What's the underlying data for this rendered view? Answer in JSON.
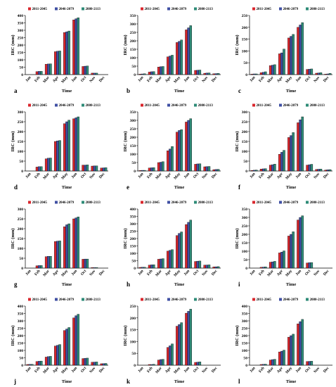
{
  "chart_data": [
    {
      "panel": "a",
      "type": "bar",
      "categories": [
        "Jan",
        "Feb",
        "Mar",
        "Apr",
        "May",
        "Jun",
        "Oct",
        "Nov",
        "Dec"
      ],
      "ylim": [
        0,
        400
      ],
      "yticks": [
        0,
        50,
        100,
        150,
        200,
        250,
        300,
        350,
        400
      ],
      "xlabel": "Time",
      "ylabel": "IRC (mm)",
      "legend": "top",
      "series": [
        {
          "name": "2011-2045",
          "values": [
            0,
            20,
            70,
            155,
            285,
            370,
            55,
            10,
            0
          ]
        },
        {
          "name": "2046-2079",
          "values": [
            0,
            22,
            72,
            158,
            290,
            378,
            57,
            10,
            0
          ]
        },
        {
          "name": "2080-2113",
          "values": [
            0,
            22,
            73,
            160,
            295,
            385,
            58,
            10,
            0
          ]
        }
      ]
    },
    {
      "panel": "b",
      "type": "bar",
      "categories": [
        "Jan",
        "Feb",
        "Mar",
        "Apr",
        "May",
        "Jun",
        "Oct",
        "Nov",
        "Dec"
      ],
      "ylim": [
        0,
        350
      ],
      "yticks": [
        0,
        50,
        100,
        150,
        200,
        250,
        300,
        350
      ],
      "xlabel": "Time",
      "ylabel": "IRC (mm)",
      "legend": "top",
      "series": [
        {
          "name": "2011-2045",
          "values": [
            3,
            15,
            45,
            105,
            190,
            265,
            25,
            8,
            5
          ]
        },
        {
          "name": "2046-2079",
          "values": [
            4,
            17,
            47,
            110,
            197,
            277,
            26,
            9,
            6
          ]
        },
        {
          "name": "2080-2113",
          "values": [
            5,
            18,
            48,
            115,
            205,
            290,
            27,
            10,
            7
          ]
        }
      ]
    },
    {
      "panel": "c",
      "type": "bar",
      "categories": [
        "Jan",
        "Feb",
        "Mar",
        "Apr",
        "May",
        "Jun",
        "Oct",
        "Nov",
        "Dec"
      ],
      "ylim": [
        0,
        250
      ],
      "yticks": [
        0,
        50,
        100,
        150,
        200,
        250
      ],
      "xlabel": "Time",
      "ylabel": "IRC (mm)",
      "legend": "top",
      "series": [
        {
          "name": "2011-2045",
          "values": [
            2,
            8,
            38,
            88,
            155,
            200,
            22,
            6,
            2
          ]
        },
        {
          "name": "2046-2079",
          "values": [
            3,
            10,
            40,
            92,
            162,
            210,
            23,
            7,
            3
          ]
        },
        {
          "name": "2080-2113",
          "values": [
            3,
            12,
            42,
            108,
            170,
            220,
            24,
            8,
            5
          ]
        }
      ]
    },
    {
      "panel": "d",
      "type": "bar",
      "categories": [
        "Jan",
        "Feb",
        "Mar",
        "Apr",
        "May",
        "Jun",
        "Oct",
        "Nov",
        "Dec"
      ],
      "ylim": [
        0,
        300
      ],
      "yticks": [
        0,
        50,
        100,
        150,
        200,
        250,
        300
      ],
      "xlabel": "Time",
      "ylabel": "IRC (mm)",
      "legend": "top",
      "series": [
        {
          "name": "2011-2045",
          "values": [
            0,
            20,
            62,
            150,
            240,
            265,
            30,
            25,
            15
          ]
        },
        {
          "name": "2046-2079",
          "values": [
            0,
            22,
            65,
            153,
            250,
            270,
            30,
            26,
            16
          ]
        },
        {
          "name": "2080-2113",
          "values": [
            0,
            22,
            66,
            155,
            258,
            275,
            31,
            26,
            17
          ]
        }
      ]
    },
    {
      "panel": "e",
      "type": "bar",
      "categories": [
        "Jan",
        "Feb",
        "Mar",
        "Apr",
        "May",
        "Jun",
        "Oct",
        "Nov",
        "Dec"
      ],
      "ylim": [
        0,
        350
      ],
      "yticks": [
        0,
        50,
        100,
        150,
        200,
        250,
        300,
        350
      ],
      "xlabel": "Time",
      "ylabel": "IRC (mm)",
      "legend": "top",
      "series": [
        {
          "name": "2011-2045",
          "values": [
            3,
            18,
            50,
            120,
            230,
            290,
            40,
            25,
            8
          ]
        },
        {
          "name": "2046-2079",
          "values": [
            4,
            19,
            52,
            130,
            240,
            300,
            42,
            26,
            9
          ]
        },
        {
          "name": "2080-2113",
          "values": [
            4,
            20,
            55,
            145,
            245,
            310,
            43,
            27,
            10
          ]
        }
      ]
    },
    {
      "panel": "f",
      "type": "bar",
      "categories": [
        "Jan",
        "Feb",
        "Mar",
        "Apr",
        "May",
        "Jun",
        "Oct",
        "Nov",
        "Dec"
      ],
      "ylim": [
        0,
        300
      ],
      "yticks": [
        0,
        50,
        100,
        150,
        200,
        250,
        300
      ],
      "xlabel": "Time",
      "ylabel": "IRC (mm)",
      "legend": "top",
      "series": [
        {
          "name": "2011-2045",
          "values": [
            3,
            10,
            30,
            85,
            170,
            245,
            30,
            8,
            5
          ]
        },
        {
          "name": "2046-2079",
          "values": [
            4,
            11,
            32,
            95,
            180,
            260,
            32,
            9,
            6
          ]
        },
        {
          "name": "2080-2113",
          "values": [
            5,
            12,
            35,
            105,
            195,
            275,
            34,
            10,
            7
          ]
        }
      ]
    },
    {
      "panel": "g",
      "type": "bar",
      "categories": [
        "Jan",
        "Feb",
        "Mar",
        "Apr",
        "May",
        "Jun",
        "Oct",
        "Nov",
        "Dec"
      ],
      "ylim": [
        0,
        300
      ],
      "yticks": [
        0,
        50,
        100,
        150,
        200,
        250,
        300
      ],
      "xlabel": "Time",
      "ylabel": "IRC (mm)",
      "legend": "top",
      "series": [
        {
          "name": "2011-2045",
          "values": [
            0,
            12,
            58,
            135,
            210,
            250,
            45,
            3,
            0
          ]
        },
        {
          "name": "2046-2079",
          "values": [
            0,
            13,
            60,
            137,
            220,
            255,
            46,
            3,
            0
          ]
        },
        {
          "name": "2080-2113",
          "values": [
            0,
            13,
            60,
            138,
            225,
            260,
            46,
            3,
            0
          ]
        }
      ]
    },
    {
      "panel": "h",
      "type": "bar",
      "categories": [
        "Jan",
        "Feb",
        "Mar",
        "Apr",
        "May",
        "Jun",
        "Oct",
        "Nov",
        "Dec"
      ],
      "ylim": [
        0,
        400
      ],
      "yticks": [
        0,
        50,
        100,
        150,
        200,
        250,
        300,
        350,
        400
      ],
      "xlabel": "Time",
      "ylabel": "IRC (mm)",
      "legend": "top",
      "series": [
        {
          "name": "2011-2045",
          "values": [
            5,
            20,
            60,
            115,
            220,
            295,
            45,
            20,
            8
          ]
        },
        {
          "name": "2046-2079",
          "values": [
            6,
            22,
            62,
            120,
            235,
            310,
            47,
            21,
            9
          ]
        },
        {
          "name": "2080-2113",
          "values": [
            6,
            23,
            64,
            125,
            245,
            325,
            48,
            22,
            10
          ]
        }
      ]
    },
    {
      "panel": "i",
      "type": "bar",
      "categories": [
        "Jan",
        "Feb",
        "Mar",
        "Apr",
        "May",
        "Jun",
        "Oct",
        "Nov",
        "Dec"
      ],
      "ylim": [
        0,
        350
      ],
      "yticks": [
        0,
        50,
        100,
        150,
        200,
        250,
        300,
        350
      ],
      "xlabel": "Time",
      "ylabel": "IRC (mm)",
      "legend": "top",
      "series": [
        {
          "name": "2011-2045",
          "values": [
            0,
            5,
            35,
            90,
            190,
            285,
            30,
            0,
            0
          ]
        },
        {
          "name": "2046-2079",
          "values": [
            0,
            6,
            37,
            95,
            200,
            300,
            32,
            0,
            0
          ]
        },
        {
          "name": "2080-2113",
          "values": [
            0,
            7,
            40,
            102,
            215,
            310,
            33,
            0,
            0
          ]
        }
      ]
    },
    {
      "panel": "j",
      "type": "bar",
      "categories": [
        "Jan",
        "Feb",
        "Mar",
        "Apr",
        "May",
        "Jun",
        "Oct",
        "Nov",
        "Dec"
      ],
      "ylim": [
        0,
        400
      ],
      "yticks": [
        0,
        50,
        100,
        150,
        200,
        250,
        300,
        350,
        400
      ],
      "xlabel": "Time",
      "ylabel": "IRC (mm)",
      "legend": "top",
      "series": [
        {
          "name": "2011-2045",
          "values": [
            5,
            25,
            55,
            130,
            235,
            320,
            45,
            20,
            10
          ]
        },
        {
          "name": "2046-2079",
          "values": [
            6,
            27,
            58,
            135,
            245,
            335,
            47,
            21,
            11
          ]
        },
        {
          "name": "2080-2113",
          "values": [
            6,
            28,
            60,
            140,
            255,
            345,
            48,
            22,
            12
          ]
        }
      ]
    },
    {
      "panel": "k",
      "type": "bar",
      "categories": [
        "Jan",
        "Feb",
        "Mar",
        "Apr",
        "May",
        "Jun",
        "Oct",
        "Nov",
        "Dec"
      ],
      "ylim": [
        0,
        250
      ],
      "yticks": [
        0,
        50,
        100,
        150,
        200,
        250
      ],
      "xlabel": "Time",
      "ylabel": "IRC (mm)",
      "legend": "top",
      "series": [
        {
          "name": "2011-2045",
          "values": [
            0,
            3,
            22,
            75,
            165,
            220,
            12,
            0,
            0
          ]
        },
        {
          "name": "2046-2079",
          "values": [
            0,
            3,
            24,
            82,
            172,
            228,
            13,
            0,
            0
          ]
        },
        {
          "name": "2080-2113",
          "values": [
            0,
            4,
            25,
            90,
            180,
            237,
            14,
            0,
            0
          ]
        }
      ]
    },
    {
      "panel": "l",
      "type": "bar",
      "categories": [
        "Jan",
        "Feb",
        "Mar",
        "Apr",
        "May",
        "Jun",
        "Oct",
        "Nov",
        "Dec"
      ],
      "ylim": [
        0,
        400
      ],
      "yticks": [
        0,
        50,
        100,
        150,
        200,
        250,
        300,
        350,
        400
      ],
      "xlabel": "Time",
      "ylabel": "IRC (mm)",
      "legend": "top",
      "series": [
        {
          "name": "2011-2045",
          "values": [
            0,
            5,
            35,
            90,
            190,
            280,
            25,
            0,
            0
          ]
        },
        {
          "name": "2046-2079",
          "values": [
            0,
            6,
            38,
            95,
            200,
            295,
            26,
            0,
            0
          ]
        },
        {
          "name": "2080-2113",
          "values": [
            0,
            7,
            40,
            102,
            210,
            310,
            27,
            0,
            0
          ]
        }
      ]
    }
  ],
  "colors": {
    "series": [
      "#d9262c",
      "#3f4fa3",
      "#2e8b77"
    ],
    "axis": "#000000"
  }
}
